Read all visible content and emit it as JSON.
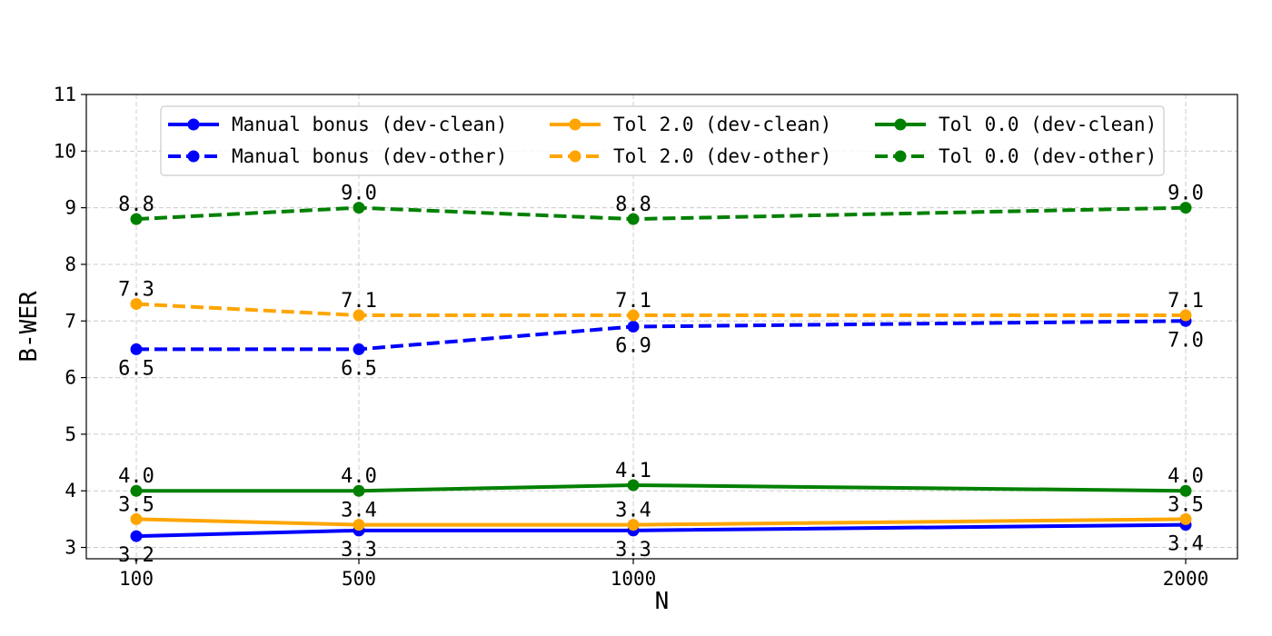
{
  "chart_data": {
    "type": "line",
    "title": "",
    "xlabel": "N",
    "ylabel": "B-WER",
    "x": [
      100,
      500,
      1000,
      2000
    ],
    "x_ticks": [
      "100",
      "500",
      "1000",
      "2000"
    ],
    "y_ticks": [
      "3",
      "4",
      "5",
      "6",
      "7",
      "8",
      "9",
      "10",
      "11"
    ],
    "ylim": [
      2.8,
      11
    ],
    "grid": true,
    "legend_position": "top",
    "series": [
      {
        "name": "Manual bonus (dev-clean)",
        "values": [
          3.2,
          3.3,
          3.3,
          3.4
        ],
        "labels": [
          "3.2",
          "3.3",
          "3.3",
          "3.4"
        ],
        "label_side": "below",
        "color": "#0000ff",
        "dashed": false
      },
      {
        "name": "Manual bonus (dev-other)",
        "values": [
          6.5,
          6.5,
          6.9,
          7.0
        ],
        "labels": [
          "6.5",
          "6.5",
          "6.9",
          "7.0"
        ],
        "label_side": "below",
        "color": "#0000ff",
        "dashed": true
      },
      {
        "name": "Tol 2.0 (dev-clean)",
        "values": [
          3.5,
          3.4,
          3.4,
          3.5
        ],
        "labels": [
          "3.5",
          "3.4",
          "3.4",
          "3.5"
        ],
        "label_side": "above",
        "color": "#ffa500",
        "dashed": false
      },
      {
        "name": "Tol 2.0 (dev-other)",
        "values": [
          7.3,
          7.1,
          7.1,
          7.1
        ],
        "labels": [
          "7.3",
          "7.1",
          "7.1",
          "7.1"
        ],
        "label_side": "above",
        "color": "#ffa500",
        "dashed": true
      },
      {
        "name": "Tol 0.0 (dev-clean)",
        "values": [
          4.0,
          4.0,
          4.1,
          4.0
        ],
        "labels": [
          "4.0",
          "4.0",
          "4.1",
          "4.0"
        ],
        "label_side": "above",
        "color": "#008000",
        "dashed": false
      },
      {
        "name": "Tol 0.0 (dev-other)",
        "values": [
          8.8,
          9.0,
          8.8,
          9.0
        ],
        "labels": [
          "8.8",
          "9.0",
          "8.8",
          "9.0"
        ],
        "label_side": "above",
        "color": "#008000",
        "dashed": true
      }
    ]
  }
}
